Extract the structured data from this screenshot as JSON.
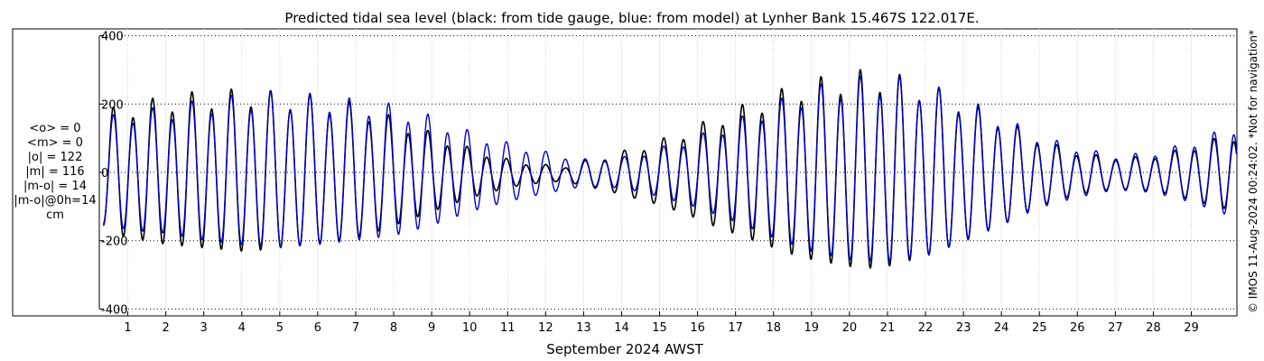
{
  "chart_data": {
    "type": "line",
    "title": "Predicted tidal sea level (black: from tide gauge, blue: from model) at Lynher Bank 15.467S 122.017E.",
    "xlabel": "September 2024 AWST",
    "ylabel": "",
    "x_unit": "day of month",
    "xlim": [
      0.25,
      30.2
    ],
    "ylim": [
      -420,
      420
    ],
    "y_ticks": [
      -400,
      -200,
      0,
      200,
      400
    ],
    "y_tick_labels": [
      "-400",
      "-200",
      "0",
      "200",
      "400"
    ],
    "x_ticks": [
      1,
      2,
      3,
      4,
      5,
      6,
      7,
      8,
      9,
      10,
      11,
      12,
      13,
      14,
      15,
      16,
      17,
      18,
      19,
      20,
      21,
      22,
      23,
      24,
      25,
      26,
      27,
      28,
      29
    ],
    "x_tick_labels": [
      "1",
      "2",
      "3",
      "4",
      "5",
      "6",
      "7",
      "8",
      "9",
      "10",
      "11",
      "12",
      "13",
      "14",
      "15",
      "16",
      "17",
      "18",
      "19",
      "20",
      "21",
      "22",
      "23",
      "24",
      "25",
      "26",
      "27",
      "28",
      "29"
    ],
    "grid": true,
    "series": [
      {
        "color": "#000000",
        "x": [
          0.35,
          0.5,
          0.5,
          1,
          1.5,
          1.5,
          2,
          2.5,
          2.5,
          3,
          3.5,
          3.5,
          4,
          4.5,
          4.5,
          5,
          5.5,
          5.5,
          6,
          6.5,
          6.5,
          7,
          7.5,
          7.5,
          8,
          8.5,
          8.5,
          9,
          9.5,
          9.5,
          10,
          10.5,
          10.5,
          11,
          11.5,
          11.5,
          12,
          12.5,
          12.5,
          13,
          13.5,
          13.5,
          14,
          14.5,
          14.5,
          15,
          15.5,
          15.5,
          16,
          16.5,
          16.5,
          17,
          17.5,
          17.5,
          18,
          18.5,
          18.5,
          19,
          19.5,
          19.5,
          20,
          20.5,
          20.5,
          21,
          21.5,
          21.5,
          22,
          22.5,
          22.5,
          23,
          23.5,
          23.5,
          24,
          24.5,
          24.5,
          25,
          25.5,
          25.5,
          26,
          26.5,
          26.5,
          27,
          27.5,
          27.5,
          28,
          28.5,
          28.5,
          29,
          29.5,
          29.5,
          30.2
        ],
        "A": [
          150,
          150,
          172,
          185,
          195,
          195,
          205,
          210,
          215,
          215,
          220,
          220,
          225,
          222,
          222,
          215,
          210,
          210,
          205,
          195,
          195,
          185,
          170,
          170,
          150,
          130,
          130,
          110,
          90,
          90,
          70,
          55,
          55,
          40,
          30,
          30,
          25,
          20,
          20,
          35,
          45,
          45,
          60,
          75,
          75,
          90,
          110,
          110,
          130,
          155,
          155,
          175,
          195,
          195,
          215,
          235,
          235,
          250,
          260,
          260,
          270,
          275,
          275,
          270,
          255,
          255,
          240,
          220,
          220,
          195,
          170,
          170,
          150,
          120,
          120,
          95,
          75,
          75,
          60,
          50,
          50,
          45,
          45,
          45,
          50,
          60,
          60,
          75,
          90,
          90,
          110,
          140
        ],
        "M": [
          -5,
          -5,
          -5,
          -5,
          -5,
          -5,
          -5,
          -5,
          -5,
          -5,
          -5,
          -5,
          -5,
          -5,
          -5,
          -5,
          -5,
          -5,
          -5,
          -5,
          -5,
          -5,
          -5,
          -5,
          -5,
          -5,
          -5,
          -5,
          -5,
          -5,
          -5,
          -5,
          -5,
          -5,
          -5,
          -5,
          -5,
          -5,
          -5,
          -5,
          -5,
          -5,
          -5,
          -5,
          -5,
          -5,
          -5,
          -5,
          -5,
          -5,
          -5,
          -5,
          -5,
          -5,
          -5,
          -5,
          -5,
          -5,
          -5,
          -5,
          -5,
          -5,
          -5,
          -5,
          -5,
          -5,
          -5,
          -5,
          -5,
          -5,
          -5,
          -5,
          -5,
          -5,
          -5,
          -5,
          -5,
          -5,
          -5,
          -5,
          -5,
          -5,
          -5,
          -5,
          -5,
          -5,
          -5,
          -5,
          -5,
          -5,
          -5
        ],
        "period_days": 0.5175,
        "phase_days": 0.62
      },
      {
        "color": "#0000cc",
        "x": [
          0.35,
          1,
          2,
          3,
          4,
          5,
          6,
          7,
          8,
          9,
          10,
          11,
          12,
          13,
          14,
          15,
          16,
          17,
          18,
          19,
          20,
          21,
          22,
          23,
          24,
          25,
          26,
          27,
          28,
          29,
          30.2
        ],
        "A": [
          145,
          165,
          175,
          195,
          208,
          215,
          208,
          195,
          182,
          152,
          112,
          82,
          58,
          38,
          42,
          68,
          100,
          142,
          188,
          228,
          252,
          258,
          240,
          200,
          152,
          100,
          70,
          48,
          56,
          84,
          132
        ],
        "M": [
          -3,
          -3,
          -3,
          -3,
          -3,
          -3,
          -3,
          -3,
          -3,
          -3,
          -3,
          -3,
          -3,
          -3,
          -3,
          -3,
          -3,
          -3,
          -3,
          -3,
          -3,
          -3,
          -3,
          -3,
          -3,
          -3,
          -3,
          -3,
          -3,
          -3,
          -3
        ],
        "period_days": 0.5175,
        "phase_days": 0.62
      }
    ]
  },
  "stats": {
    "lines": [
      "<o> = 0",
      "<m> = 0",
      "|o| = 122",
      "|m| = 116",
      "|m-o| = 14",
      "|m-o|@0h=14",
      "cm"
    ]
  },
  "credit": "© IMOS 11-Aug-2024 00:24:02. *Not for navigation*"
}
